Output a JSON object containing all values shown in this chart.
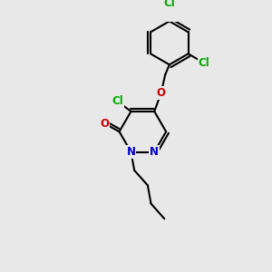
{
  "bg_color": "#e8e8e8",
  "bond_color": "#000000",
  "bond_width": 1.5,
  "atom_colors": {
    "C": "#000000",
    "N": "#0000cc",
    "O": "#cc0000",
    "Cl": "#00aa00"
  },
  "font_size": 8.5,
  "fig_size": [
    3.0,
    3.0
  ],
  "dpi": 100
}
